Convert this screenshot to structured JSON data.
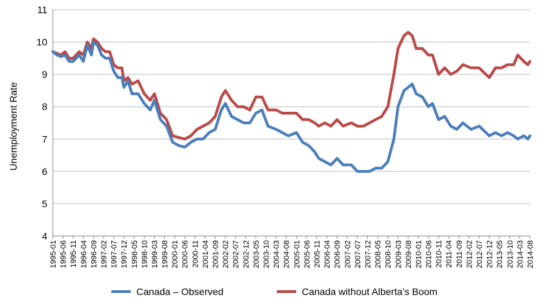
{
  "chart_data": {
    "type": "line",
    "title": "",
    "xlabel": "",
    "ylabel": "Unemployment Rate",
    "ylim": [
      4,
      11
    ],
    "yticks": [
      "4",
      "5",
      "6",
      "7",
      "8",
      "9",
      "10",
      "11"
    ],
    "grid": true,
    "legend_position": "bottom",
    "x_tick_labels": [
      "1995-01",
      "1995-06",
      "1995-11",
      "1996-04",
      "1996-09",
      "1997-02",
      "1997-07",
      "1997-12",
      "1998-05",
      "1998-10",
      "1999-03",
      "1999-08",
      "2000-01",
      "2000-06",
      "2000-11",
      "2001-04",
      "2001-09",
      "2002-02",
      "2002-07",
      "2002-12",
      "2003-05",
      "2003-10",
      "2004-03",
      "2004-08",
      "2005-01",
      "2005-06",
      "2005-11",
      "2006-04",
      "2006-09",
      "2007-02",
      "2007-07",
      "2007-12",
      "2008-05",
      "2008-10",
      "2009-03",
      "2009-08",
      "2010-01",
      "2010-06",
      "2010-11",
      "2011-04",
      "2011-09",
      "2012-02",
      "2012-07",
      "2012-12",
      "2013-05",
      "2013-10",
      "2014-03",
      "2014-08"
    ],
    "series": [
      {
        "name": "Canada – Observed",
        "color": "#4a7ebb",
        "anchors": [
          [
            "1995-01",
            9.7
          ],
          [
            "1995-03",
            9.6
          ],
          [
            "1995-05",
            9.55
          ],
          [
            "1995-07",
            9.6
          ],
          [
            "1995-09",
            9.4
          ],
          [
            "1995-11",
            9.4
          ],
          [
            "1996-02",
            9.6
          ],
          [
            "1996-04",
            9.4
          ],
          [
            "1996-06",
            9.9
          ],
          [
            "1996-08",
            9.6
          ],
          [
            "1996-09",
            10.0
          ],
          [
            "1996-11",
            9.9
          ],
          [
            "1997-01",
            9.6
          ],
          [
            "1997-03",
            9.5
          ],
          [
            "1997-05",
            9.5
          ],
          [
            "1997-07",
            9.1
          ],
          [
            "1997-09",
            8.9
          ],
          [
            "1997-11",
            8.9
          ],
          [
            "1997-12",
            8.6
          ],
          [
            "1998-02",
            8.8
          ],
          [
            "1998-04",
            8.4
          ],
          [
            "1998-07",
            8.4
          ],
          [
            "1998-10",
            8.1
          ],
          [
            "1999-01",
            7.9
          ],
          [
            "1999-03",
            8.2
          ],
          [
            "1999-06",
            7.6
          ],
          [
            "1999-09",
            7.4
          ],
          [
            "1999-12",
            6.9
          ],
          [
            "2000-03",
            6.8
          ],
          [
            "2000-06",
            6.75
          ],
          [
            "2000-09",
            6.9
          ],
          [
            "2000-12",
            7.0
          ],
          [
            "2001-03",
            7.0
          ],
          [
            "2001-06",
            7.2
          ],
          [
            "2001-09",
            7.3
          ],
          [
            "2001-12",
            7.9
          ],
          [
            "2002-02",
            8.1
          ],
          [
            "2002-05",
            7.7
          ],
          [
            "2002-08",
            7.6
          ],
          [
            "2002-11",
            7.5
          ],
          [
            "2003-02",
            7.5
          ],
          [
            "2003-05",
            7.8
          ],
          [
            "2003-08",
            7.9
          ],
          [
            "2003-11",
            7.4
          ],
          [
            "2004-03",
            7.3
          ],
          [
            "2004-06",
            7.2
          ],
          [
            "2004-09",
            7.1
          ],
          [
            "2005-01",
            7.2
          ],
          [
            "2005-04",
            6.9
          ],
          [
            "2005-07",
            6.8
          ],
          [
            "2005-10",
            6.6
          ],
          [
            "2005-12",
            6.4
          ],
          [
            "2006-03",
            6.3
          ],
          [
            "2006-06",
            6.2
          ],
          [
            "2006-09",
            6.4
          ],
          [
            "2006-12",
            6.2
          ],
          [
            "2007-04",
            6.2
          ],
          [
            "2007-07",
            6.0
          ],
          [
            "2007-10",
            6.0
          ],
          [
            "2008-01",
            6.0
          ],
          [
            "2008-04",
            6.1
          ],
          [
            "2008-07",
            6.1
          ],
          [
            "2008-10",
            6.3
          ],
          [
            "2009-01",
            7.0
          ],
          [
            "2009-03",
            8.0
          ],
          [
            "2009-06",
            8.5
          ],
          [
            "2009-08",
            8.6
          ],
          [
            "2009-10",
            8.7
          ],
          [
            "2009-12",
            8.4
          ],
          [
            "2010-03",
            8.3
          ],
          [
            "2010-06",
            8.0
          ],
          [
            "2010-08",
            8.1
          ],
          [
            "2010-11",
            7.6
          ],
          [
            "2011-02",
            7.7
          ],
          [
            "2011-05",
            7.4
          ],
          [
            "2011-08",
            7.3
          ],
          [
            "2011-11",
            7.5
          ],
          [
            "2012-03",
            7.3
          ],
          [
            "2012-07",
            7.4
          ],
          [
            "2012-12",
            7.1
          ],
          [
            "2013-03",
            7.2
          ],
          [
            "2013-06",
            7.1
          ],
          [
            "2013-09",
            7.2
          ],
          [
            "2013-12",
            7.1
          ],
          [
            "2014-02",
            7.0
          ],
          [
            "2014-05",
            7.1
          ],
          [
            "2014-07",
            7.0
          ],
          [
            "2014-08",
            7.1
          ]
        ]
      },
      {
        "name": "Canada without Alberta’s Boom",
        "color": "#b94a48",
        "anchors": [
          [
            "1995-01",
            9.7
          ],
          [
            "1995-03",
            9.65
          ],
          [
            "1995-05",
            9.6
          ],
          [
            "1995-07",
            9.7
          ],
          [
            "1995-09",
            9.5
          ],
          [
            "1995-11",
            9.5
          ],
          [
            "1996-02",
            9.7
          ],
          [
            "1996-04",
            9.6
          ],
          [
            "1996-06",
            10.0
          ],
          [
            "1996-08",
            9.8
          ],
          [
            "1996-09",
            10.1
          ],
          [
            "1996-11",
            10.0
          ],
          [
            "1997-01",
            9.8
          ],
          [
            "1997-03",
            9.7
          ],
          [
            "1997-05",
            9.7
          ],
          [
            "1997-07",
            9.3
          ],
          [
            "1997-09",
            9.2
          ],
          [
            "1997-11",
            9.2
          ],
          [
            "1997-12",
            8.8
          ],
          [
            "1998-02",
            8.9
          ],
          [
            "1998-04",
            8.7
          ],
          [
            "1998-07",
            8.8
          ],
          [
            "1998-10",
            8.4
          ],
          [
            "1999-01",
            8.2
          ],
          [
            "1999-03",
            8.4
          ],
          [
            "1999-06",
            7.8
          ],
          [
            "1999-09",
            7.6
          ],
          [
            "1999-12",
            7.1
          ],
          [
            "2000-03",
            7.05
          ],
          [
            "2000-06",
            7.0
          ],
          [
            "2000-09",
            7.1
          ],
          [
            "2000-12",
            7.3
          ],
          [
            "2001-03",
            7.4
          ],
          [
            "2001-06",
            7.5
          ],
          [
            "2001-09",
            7.7
          ],
          [
            "2001-12",
            8.3
          ],
          [
            "2002-02",
            8.5
          ],
          [
            "2002-05",
            8.2
          ],
          [
            "2002-08",
            8.0
          ],
          [
            "2002-11",
            8.0
          ],
          [
            "2003-02",
            7.9
          ],
          [
            "2003-05",
            8.3
          ],
          [
            "2003-08",
            8.3
          ],
          [
            "2003-11",
            7.9
          ],
          [
            "2004-03",
            7.9
          ],
          [
            "2004-06",
            7.8
          ],
          [
            "2004-09",
            7.8
          ],
          [
            "2005-01",
            7.8
          ],
          [
            "2005-04",
            7.6
          ],
          [
            "2005-07",
            7.6
          ],
          [
            "2005-10",
            7.5
          ],
          [
            "2005-12",
            7.4
          ],
          [
            "2006-03",
            7.5
          ],
          [
            "2006-06",
            7.4
          ],
          [
            "2006-09",
            7.6
          ],
          [
            "2006-12",
            7.4
          ],
          [
            "2007-04",
            7.5
          ],
          [
            "2007-07",
            7.4
          ],
          [
            "2007-10",
            7.4
          ],
          [
            "2008-01",
            7.5
          ],
          [
            "2008-04",
            7.6
          ],
          [
            "2008-07",
            7.7
          ],
          [
            "2008-10",
            8.0
          ],
          [
            "2009-01",
            9.0
          ],
          [
            "2009-03",
            9.8
          ],
          [
            "2009-06",
            10.2
          ],
          [
            "2009-08",
            10.3
          ],
          [
            "2009-10",
            10.2
          ],
          [
            "2009-12",
            9.8
          ],
          [
            "2010-03",
            9.8
          ],
          [
            "2010-06",
            9.6
          ],
          [
            "2010-08",
            9.6
          ],
          [
            "2010-11",
            9.0
          ],
          [
            "2011-02",
            9.2
          ],
          [
            "2011-05",
            9.0
          ],
          [
            "2011-08",
            9.1
          ],
          [
            "2011-11",
            9.3
          ],
          [
            "2012-03",
            9.2
          ],
          [
            "2012-07",
            9.2
          ],
          [
            "2012-12",
            8.9
          ],
          [
            "2013-03",
            9.2
          ],
          [
            "2013-06",
            9.2
          ],
          [
            "2013-09",
            9.3
          ],
          [
            "2013-12",
            9.3
          ],
          [
            "2014-02",
            9.6
          ],
          [
            "2014-05",
            9.4
          ],
          [
            "2014-07",
            9.3
          ],
          [
            "2014-08",
            9.4
          ]
        ]
      }
    ]
  }
}
